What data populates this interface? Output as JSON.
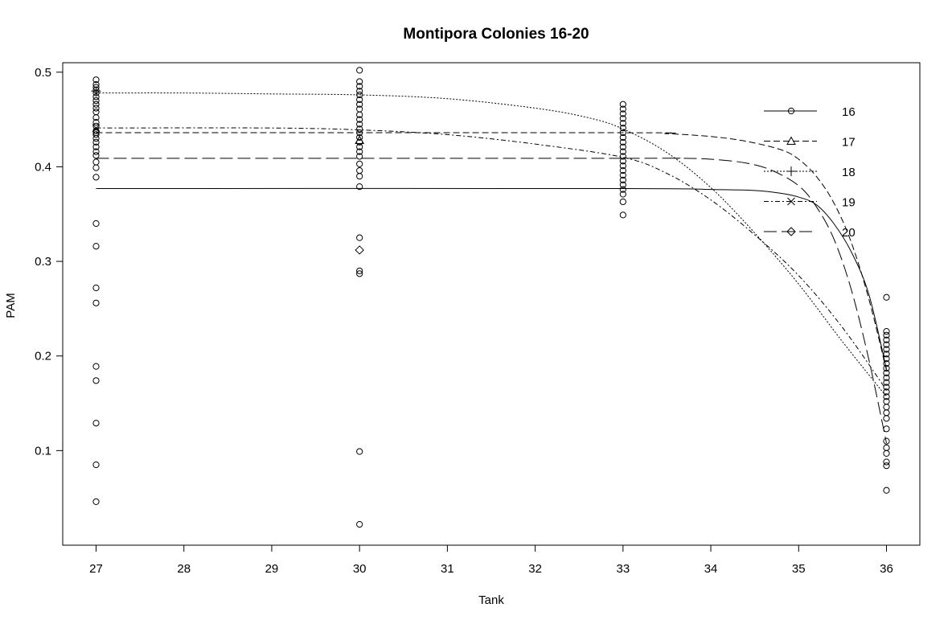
{
  "chart_data": {
    "type": "scatter",
    "title": "Montipora Colonies 16-20",
    "xlabel": "Tank",
    "ylabel": "PAM",
    "xlim": [
      26.62,
      36.38
    ],
    "ylim": [
      0.0,
      0.51
    ],
    "xticks": [
      "27",
      "28",
      "29",
      "30",
      "31",
      "32",
      "33",
      "34",
      "35",
      "36"
    ],
    "yticks": [
      "0.1",
      "0.2",
      "0.3",
      "0.4",
      "0.5"
    ],
    "grid": false,
    "legend_position": "top-right",
    "points": [
      {
        "x": 27,
        "y": 0.492
      },
      {
        "x": 27,
        "y": 0.487
      },
      {
        "x": 27,
        "y": 0.484
      },
      {
        "x": 27,
        "y": 0.481
      },
      {
        "x": 27,
        "y": 0.478
      },
      {
        "x": 27,
        "y": 0.474
      },
      {
        "x": 27,
        "y": 0.47
      },
      {
        "x": 27,
        "y": 0.466
      },
      {
        "x": 27,
        "y": 0.462
      },
      {
        "x": 27,
        "y": 0.458
      },
      {
        "x": 27,
        "y": 0.452
      },
      {
        "x": 27,
        "y": 0.447
      },
      {
        "x": 27,
        "y": 0.443
      },
      {
        "x": 27,
        "y": 0.438
      },
      {
        "x": 27,
        "y": 0.434
      },
      {
        "x": 27,
        "y": 0.43
      },
      {
        "x": 27,
        "y": 0.426
      },
      {
        "x": 27,
        "y": 0.421
      },
      {
        "x": 27,
        "y": 0.416
      },
      {
        "x": 27,
        "y": 0.412
      },
      {
        "x": 27,
        "y": 0.405
      },
      {
        "x": 27,
        "y": 0.399
      },
      {
        "x": 27,
        "y": 0.389
      },
      {
        "x": 27,
        "y": 0.34
      },
      {
        "x": 27,
        "y": 0.316
      },
      {
        "x": 27,
        "y": 0.272
      },
      {
        "x": 27,
        "y": 0.256
      },
      {
        "x": 27,
        "y": 0.189
      },
      {
        "x": 27,
        "y": 0.174
      },
      {
        "x": 27,
        "y": 0.129
      },
      {
        "x": 27,
        "y": 0.085
      },
      {
        "x": 27,
        "y": 0.046
      },
      {
        "x": 30,
        "y": 0.502
      },
      {
        "x": 30,
        "y": 0.49
      },
      {
        "x": 30,
        "y": 0.485
      },
      {
        "x": 30,
        "y": 0.48
      },
      {
        "x": 30,
        "y": 0.476
      },
      {
        "x": 30,
        "y": 0.471
      },
      {
        "x": 30,
        "y": 0.466
      },
      {
        "x": 30,
        "y": 0.461
      },
      {
        "x": 30,
        "y": 0.455
      },
      {
        "x": 30,
        "y": 0.45
      },
      {
        "x": 30,
        "y": 0.445
      },
      {
        "x": 30,
        "y": 0.44
      },
      {
        "x": 30,
        "y": 0.436
      },
      {
        "x": 30,
        "y": 0.431
      },
      {
        "x": 30,
        "y": 0.426
      },
      {
        "x": 30,
        "y": 0.421
      },
      {
        "x": 30,
        "y": 0.416
      },
      {
        "x": 30,
        "y": 0.411
      },
      {
        "x": 30,
        "y": 0.403
      },
      {
        "x": 30,
        "y": 0.396
      },
      {
        "x": 30,
        "y": 0.39
      },
      {
        "x": 30,
        "y": 0.379
      },
      {
        "x": 30,
        "y": 0.325
      },
      {
        "x": 30,
        "y": 0.29
      },
      {
        "x": 30,
        "y": 0.287
      },
      {
        "x": 30,
        "y": 0.099
      },
      {
        "x": 30,
        "y": 0.022
      },
      {
        "x": 33,
        "y": 0.466
      },
      {
        "x": 33,
        "y": 0.461
      },
      {
        "x": 33,
        "y": 0.456
      },
      {
        "x": 33,
        "y": 0.451
      },
      {
        "x": 33,
        "y": 0.446
      },
      {
        "x": 33,
        "y": 0.441
      },
      {
        "x": 33,
        "y": 0.436
      },
      {
        "x": 33,
        "y": 0.431
      },
      {
        "x": 33,
        "y": 0.426
      },
      {
        "x": 33,
        "y": 0.421
      },
      {
        "x": 33,
        "y": 0.416
      },
      {
        "x": 33,
        "y": 0.411
      },
      {
        "x": 33,
        "y": 0.406
      },
      {
        "x": 33,
        "y": 0.401
      },
      {
        "x": 33,
        "y": 0.396
      },
      {
        "x": 33,
        "y": 0.391
      },
      {
        "x": 33,
        "y": 0.386
      },
      {
        "x": 33,
        "y": 0.381
      },
      {
        "x": 33,
        "y": 0.376
      },
      {
        "x": 33,
        "y": 0.371
      },
      {
        "x": 33,
        "y": 0.363
      },
      {
        "x": 33,
        "y": 0.349
      },
      {
        "x": 36,
        "y": 0.262
      },
      {
        "x": 36,
        "y": 0.226
      },
      {
        "x": 36,
        "y": 0.222
      },
      {
        "x": 36,
        "y": 0.217
      },
      {
        "x": 36,
        "y": 0.212
      },
      {
        "x": 36,
        "y": 0.207
      },
      {
        "x": 36,
        "y": 0.202
      },
      {
        "x": 36,
        "y": 0.197
      },
      {
        "x": 36,
        "y": 0.192
      },
      {
        "x": 36,
        "y": 0.187
      },
      {
        "x": 36,
        "y": 0.182
      },
      {
        "x": 36,
        "y": 0.177
      },
      {
        "x": 36,
        "y": 0.172
      },
      {
        "x": 36,
        "y": 0.167
      },
      {
        "x": 36,
        "y": 0.162
      },
      {
        "x": 36,
        "y": 0.157
      },
      {
        "x": 36,
        "y": 0.152
      },
      {
        "x": 36,
        "y": 0.146
      },
      {
        "x": 36,
        "y": 0.14
      },
      {
        "x": 36,
        "y": 0.134
      },
      {
        "x": 36,
        "y": 0.123
      },
      {
        "x": 36,
        "y": 0.11
      },
      {
        "x": 36,
        "y": 0.103
      },
      {
        "x": 36,
        "y": 0.097
      },
      {
        "x": 36,
        "y": 0.088
      },
      {
        "x": 36,
        "y": 0.084
      },
      {
        "x": 36,
        "y": 0.058
      }
    ],
    "series": [
      {
        "name": "16",
        "marker": "circle",
        "dash": "",
        "marker_point": {
          "x": 27,
          "y": 0.436
        },
        "curve": [
          [
            27,
            0.377
          ],
          [
            33,
            0.377
          ],
          [
            34,
            0.376
          ],
          [
            34.5,
            0.375
          ],
          [
            34.8,
            0.372
          ],
          [
            35.0,
            0.368
          ],
          [
            35.2,
            0.36
          ],
          [
            35.4,
            0.34
          ],
          [
            35.6,
            0.31
          ],
          [
            35.8,
            0.265
          ],
          [
            36,
            0.186
          ]
        ]
      },
      {
        "name": "17",
        "marker": "triangle",
        "dash": "8,4",
        "marker_point": {
          "x": 30,
          "y": 0.428
        },
        "curve": [
          [
            27,
            0.436
          ],
          [
            33,
            0.436
          ],
          [
            33.5,
            0.435
          ],
          [
            34.0,
            0.432
          ],
          [
            34.4,
            0.427
          ],
          [
            34.8,
            0.418
          ],
          [
            35.0,
            0.408
          ],
          [
            35.2,
            0.39
          ],
          [
            35.4,
            0.362
          ],
          [
            35.6,
            0.32
          ],
          [
            35.8,
            0.26
          ],
          [
            36,
            0.185
          ]
        ]
      },
      {
        "name": "18",
        "marker": "plus",
        "dash": "2,2",
        "marker_point": {
          "x": 27,
          "y": 0.48
        },
        "curve": [
          [
            27,
            0.478
          ],
          [
            28,
            0.478
          ],
          [
            29,
            0.477
          ],
          [
            30,
            0.476
          ],
          [
            31,
            0.472
          ],
          [
            32,
            0.462
          ],
          [
            32.6,
            0.452
          ],
          [
            33,
            0.44
          ],
          [
            33.5,
            0.415
          ],
          [
            34,
            0.378
          ],
          [
            34.5,
            0.33
          ],
          [
            35,
            0.276
          ],
          [
            35.5,
            0.215
          ],
          [
            36,
            0.157
          ]
        ]
      },
      {
        "name": "19",
        "marker": "x",
        "dash": "6,3,2,3",
        "marker_point": {
          "x": 27,
          "y": 0.441
        },
        "curve": [
          [
            27,
            0.441
          ],
          [
            29,
            0.441
          ],
          [
            30,
            0.439
          ],
          [
            31,
            0.434
          ],
          [
            32,
            0.424
          ],
          [
            33,
            0.41
          ],
          [
            33.5,
            0.393
          ],
          [
            34,
            0.365
          ],
          [
            34.5,
            0.328
          ],
          [
            35,
            0.285
          ],
          [
            35.5,
            0.23
          ],
          [
            36,
            0.164
          ]
        ]
      },
      {
        "name": "20",
        "marker": "diamond",
        "dash": "16,6",
        "marker_point": {
          "x": 30,
          "y": 0.312
        },
        "curve": [
          [
            27,
            0.409
          ],
          [
            33,
            0.409
          ],
          [
            33.6,
            0.409
          ],
          [
            34.0,
            0.408
          ],
          [
            34.4,
            0.404
          ],
          [
            34.7,
            0.396
          ],
          [
            35.0,
            0.38
          ],
          [
            35.2,
            0.358
          ],
          [
            35.4,
            0.324
          ],
          [
            35.6,
            0.27
          ],
          [
            35.8,
            0.196
          ],
          [
            36,
            0.108
          ]
        ]
      }
    ]
  }
}
